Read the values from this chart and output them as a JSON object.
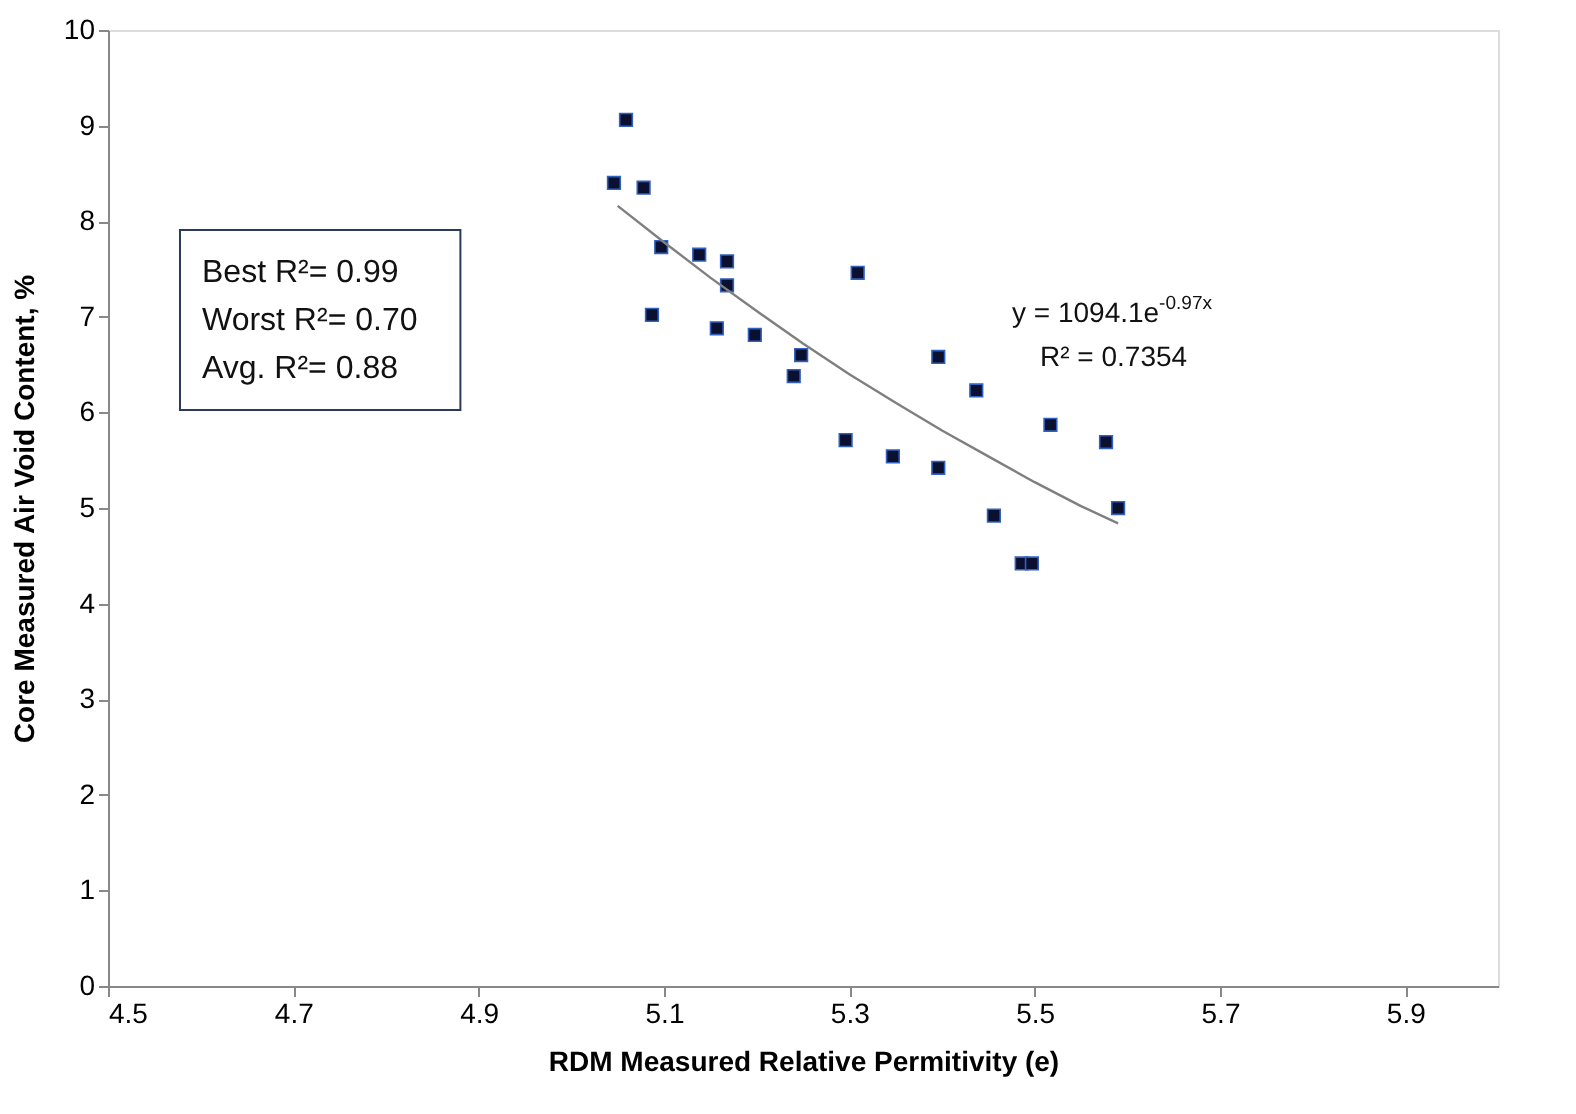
{
  "chart_data": {
    "type": "scatter",
    "xlabel": "RDM Measured Relative Permitivity (e)",
    "ylabel": "Core Measured Air Void Content, %",
    "xlim": [
      4.5,
      6.0
    ],
    "xticks": [
      4.5,
      4.7,
      4.9,
      5.1,
      5.3,
      5.5,
      5.7,
      5.9
    ],
    "ylim": [
      0,
      10
    ],
    "yticks": [
      0,
      1,
      2,
      3,
      4,
      5,
      6,
      7,
      8,
      9,
      10
    ],
    "grid": false,
    "series": [
      {
        "marker": "square",
        "color": "#0b1030",
        "x": [
          5.046,
          5.059,
          5.078,
          5.097,
          5.087,
          5.138,
          5.168,
          5.168,
          5.157,
          5.198,
          5.248,
          5.24,
          5.309,
          5.296,
          5.347,
          5.396,
          5.396,
          5.437,
          5.456,
          5.486,
          5.497,
          5.517,
          5.577,
          5.59
        ],
        "values": [
          8.4,
          9.06,
          8.35,
          7.73,
          7.02,
          7.65,
          7.58,
          7.33,
          6.88,
          6.81,
          6.6,
          6.38,
          7.46,
          5.71,
          5.54,
          6.58,
          5.42,
          6.23,
          4.92,
          4.42,
          4.42,
          5.87,
          5.69,
          5.0
        ]
      },
      {
        "type": "line",
        "color": "#7f7f7f",
        "x": [
          5.05,
          5.1,
          5.15,
          5.2,
          5.25,
          5.3,
          5.35,
          5.4,
          5.45,
          5.5,
          5.55,
          5.59
        ],
        "values": [
          8.16,
          7.78,
          7.41,
          7.06,
          6.72,
          6.4,
          6.1,
          5.81,
          5.54,
          5.27,
          5.02,
          4.84
        ]
      }
    ],
    "annotations": [
      "Best R²= 0.99",
      "Worst R²= 0.70",
      "Avg. R²= 0.88",
      "y = 1094.1e$^{-0.97x}$",
      "R² = 0.7354"
    ]
  }
}
